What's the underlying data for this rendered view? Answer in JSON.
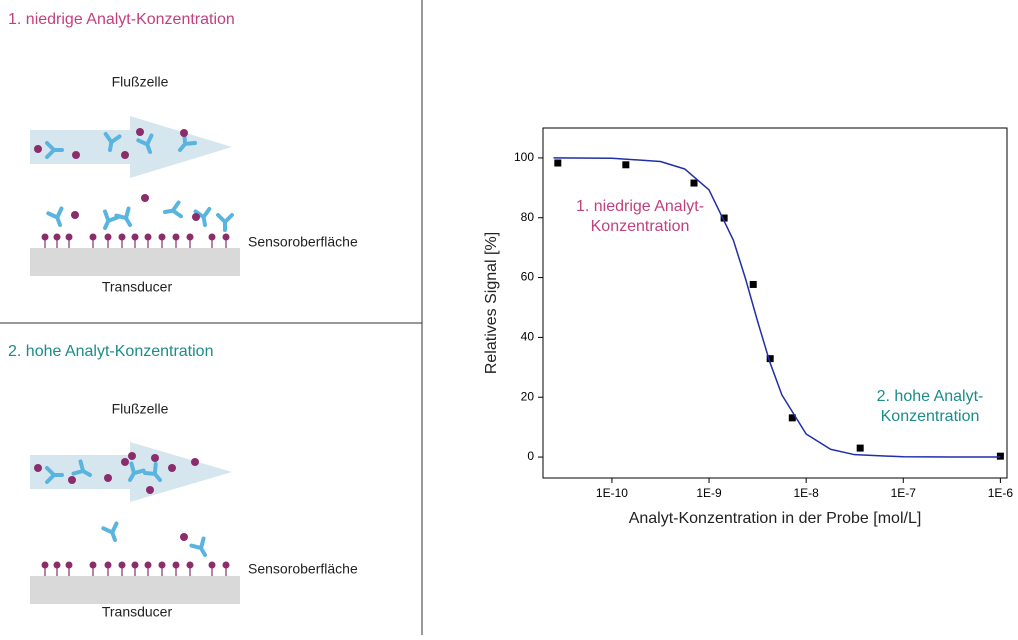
{
  "panels": [
    {
      "title": "1. niedrige Analyt-Konzentration",
      "flow_cell": "Flußzelle",
      "surface": "Sensoroberfläche",
      "transducer": "Transducer"
    },
    {
      "title": "2. hohe Analyt-Konzentration",
      "flow_cell": "Flußzelle",
      "surface": "Sensoroberfläche",
      "transducer": "Transducer"
    }
  ],
  "chart_data": {
    "type": "scatter",
    "xlabel": "Analyt-Konzentration in der Probe [mol/L]",
    "ylabel": "Relatives Signal [%]",
    "xscale": "log",
    "xlim": [
      1.95e-11,
      1.17e-06
    ],
    "ylim": [
      -7,
      110
    ],
    "xticks": [
      {
        "value": 1e-10,
        "label": "1E-10"
      },
      {
        "value": 1e-09,
        "label": "1E-9"
      },
      {
        "value": 1e-08,
        "label": "1E-8"
      },
      {
        "value": 1e-07,
        "label": "1E-7"
      },
      {
        "value": 1e-06,
        "label": "1E-6"
      }
    ],
    "yticks": [
      0,
      20,
      40,
      60,
      80,
      100
    ],
    "series": [
      {
        "kind": "points",
        "color": "#000000",
        "x": [
          2.77e-11,
          1.39e-10,
          7e-10,
          1.43e-09,
          2.85e-09,
          4.26e-09,
          7.2e-09,
          3.6e-08,
          1e-06
        ],
        "values": [
          98.3,
          97.7,
          91.6,
          79.9,
          57.7,
          32.9,
          13.1,
          3.0,
          0.3
        ]
      },
      {
        "kind": "line",
        "color": "#1f2fa8",
        "x": [
          2.5e-11,
          1e-10,
          3.16e-10,
          5.62e-10,
          1e-09,
          1.78e-09,
          2.37e-09,
          3.16e-09,
          4.22e-09,
          5.62e-09,
          1e-08,
          1.78e-08,
          3.16e-08,
          1e-07,
          3.16e-07,
          1e-06
        ],
        "values": [
          100,
          99.9,
          98.8,
          96.3,
          89.3,
          72.5,
          59.7,
          45.4,
          31.8,
          20.8,
          7.7,
          2.6,
          0.8,
          0.1,
          0,
          0
        ]
      }
    ],
    "annotations": [
      {
        "lines": [
          "1. niedrige Analyt-",
          "Konzentration"
        ],
        "color": "#c2407e"
      },
      {
        "lines": [
          "2. hohe Analyt-",
          "Konzentration"
        ],
        "color": "#1b8c8c"
      }
    ]
  }
}
